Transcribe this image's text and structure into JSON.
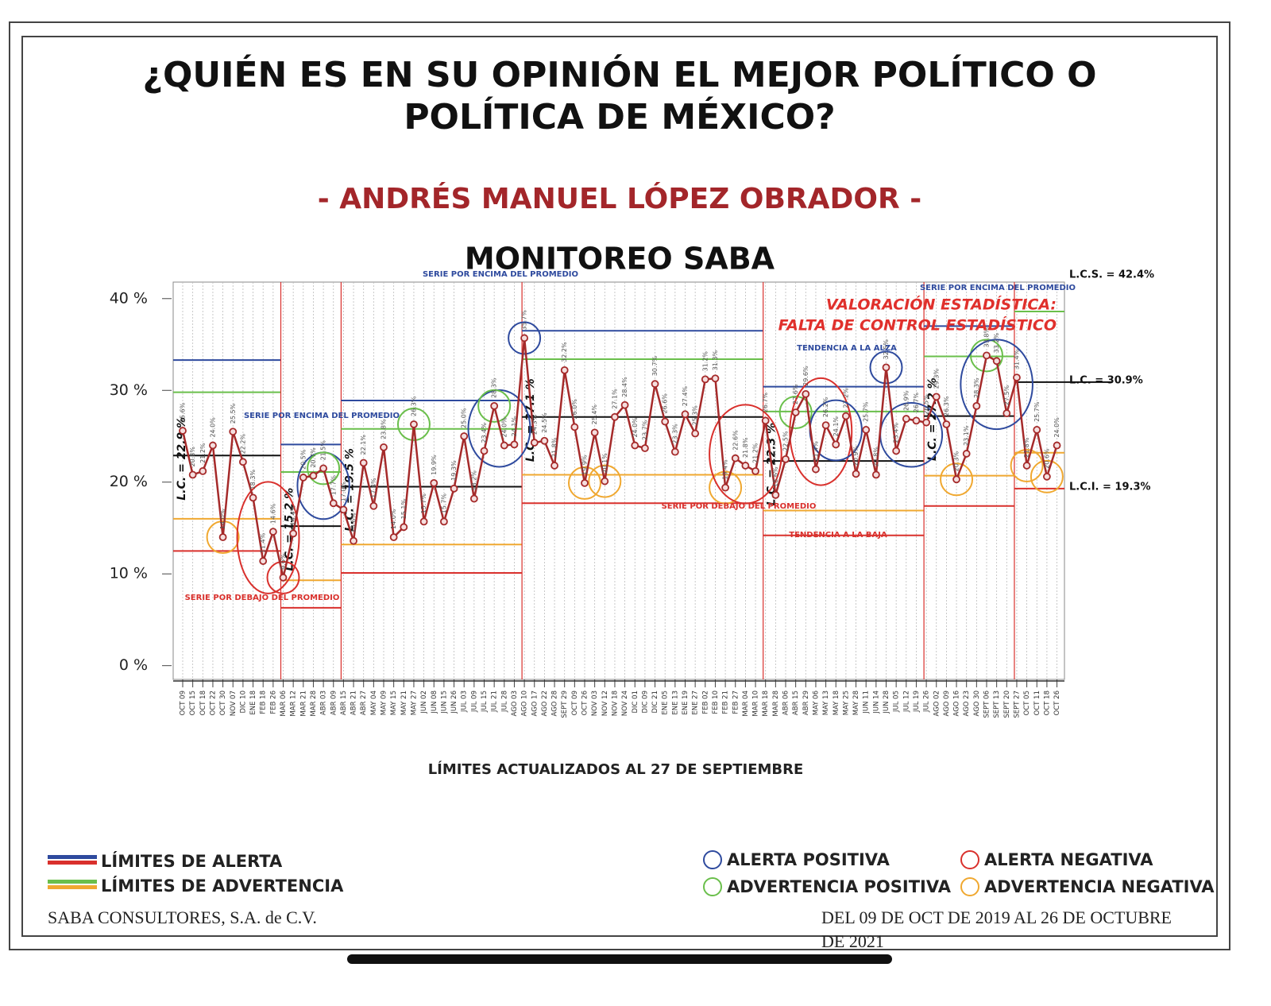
{
  "chart_data": {
    "type": "line",
    "title": "¿QUIÉN ES EN SU OPINIÓN EL MEJOR POLÍTICO O",
    "title2": "POLÍTICA DE MÉXICO?",
    "subtitle": "- ANDRÉS MANUEL LÓPEZ OBRADOR -",
    "heading": "MONITOREO SABA",
    "note": "LÍMITES ACTUALIZADOS AL  27  DE  SEPTIEMBRE",
    "categories": [
      "OCT 09",
      "OCT 15",
      "OCT 18",
      "OCT 22",
      "OCT 30",
      "NOV 07",
      "DIC 10",
      "ENE 18",
      "FEB 18",
      "FEB 26",
      "MAR 06",
      "MAR 12",
      "MAR 21",
      "MAR 28",
      "ABR 03",
      "ABR 09",
      "ABR 15",
      "ABR 21",
      "ABR 27",
      "MAY 04",
      "MAY 09",
      "MAY 15",
      "MAY 21",
      "MAY 27",
      "JUN 02",
      "JUN 08",
      "JUN 15",
      "JUN 26",
      "JUL 03",
      "JUL 09",
      "JUL 15",
      "JUL 21",
      "JUL 28",
      "AGO 03",
      "AGO 10",
      "AGO 17",
      "AGO 22",
      "AGO 28",
      "SEPT 29",
      "OCT 09",
      "OCT 26",
      "NOV 03",
      "NOV 12",
      "NOV 18",
      "NOV 24",
      "DIC 01",
      "DIC 09",
      "DIC 21",
      "ENE 05",
      "ENE 13",
      "ENE 19",
      "ENE 27",
      "FEB 02",
      "FEB 10",
      "FEB 21",
      "FEB 27",
      "MAR 04",
      "MAR 10",
      "MAR 18",
      "MAR 28",
      "ABR 06",
      "ABR 15",
      "ABR 29",
      "MAY 06",
      "MAY 13",
      "MAY 18",
      "MAY 25",
      "MAY 28",
      "JUN 11",
      "JUN 14",
      "JUN 28",
      "JUL 05",
      "JUL 12",
      "JUL 19",
      "JUL 26",
      "AGO 02",
      "AGO 09",
      "AGO 16",
      "AGO 23",
      "AGO 30",
      "SEPT 06",
      "SEPT 13",
      "SEPT 20",
      "SEPT 27",
      "OCT 05",
      "OCT 11",
      "OCT 18",
      "OCT 26"
    ],
    "values": [
      25.6,
      20.8,
      21.2,
      24.0,
      14.0,
      25.5,
      22.2,
      18.3,
      11.4,
      14.6,
      9.6,
      14.4,
      20.5,
      20.7,
      21.5,
      17.7,
      17.0,
      13.6,
      22.1,
      17.4,
      23.8,
      14.0,
      15.1,
      26.3,
      15.7,
      19.9,
      15.7,
      19.3,
      25.0,
      18.2,
      23.4,
      28.3,
      24.0,
      24.1,
      35.7,
      24.3,
      24.5,
      21.8,
      32.2,
      26.0,
      19.9,
      25.4,
      20.1,
      27.1,
      28.4,
      24.0,
      23.7,
      30.7,
      26.6,
      23.3,
      27.4,
      25.3,
      31.2,
      31.3,
      19.4,
      22.6,
      21.8,
      21.2,
      26.7,
      18.6,
      22.5,
      27.6,
      29.6,
      21.4,
      26.2,
      24.1,
      27.2,
      20.9,
      25.7,
      20.8,
      32.5,
      23.4,
      26.9,
      26.7,
      26.5,
      29.3,
      26.3,
      20.3,
      23.1,
      28.3,
      33.8,
      33.2,
      27.5,
      31.4,
      21.8,
      25.7,
      20.6,
      24.0
    ],
    "value_labels": [
      "25.6%",
      "20.8%",
      "21.2%",
      "24.0%",
      "14.0%",
      "25.5%",
      "22.2%",
      "18.3%",
      "11.4%",
      "14.6%",
      "9.6%",
      "14.4%",
      "20.5%",
      "20.7%",
      "21.5%",
      "17.7%",
      "17.0%",
      "13.6%",
      "22.1%",
      "17.4%",
      "23.8%",
      "14.0%",
      "15.1%",
      "26.3%",
      "15.7%",
      "19.9%",
      "15.7%",
      "19.3%",
      "25.0%",
      "18.2%",
      "23.4%",
      "28.3%",
      "24.0%",
      "24.1%",
      "35.7%",
      "24.3%",
      "24.5%",
      "21.8%",
      "32.2%",
      "26.0%",
      "19.9%",
      "25.4%",
      "20.1%",
      "27.1%",
      "28.4%",
      "24.0%",
      "23.7%",
      "30.7%",
      "26.6%",
      "23.3%",
      "27.4%",
      "25.3%",
      "31.2%",
      "31.3%",
      "19.4%",
      "22.6%",
      "21.8%",
      "21.2%",
      "26.7%",
      "18.6%",
      "22.5%",
      "27.6%",
      "29.6%",
      "21.4%",
      "26.2%",
      "24.1%",
      "27.2%",
      "20.9%",
      "25.7%",
      "20.8%",
      "32.5%",
      "23.4%",
      "26.9%",
      "26.7%",
      "26.5%",
      "29.3%",
      "26.3%",
      "20.3%",
      "23.1%",
      "28.3%",
      "33.8%",
      "33.2%",
      "27.5%",
      "31.4%",
      "21.8%",
      "25.7%",
      "20.6%",
      "24.0%"
    ],
    "color": "#a52a2a",
    "ylim": [
      -1.5,
      41.8
    ],
    "yticks": [
      {
        "value": 0,
        "label": "0 %"
      },
      {
        "value": 10,
        "label": "10 %"
      },
      {
        "value": 20,
        "label": "20 %"
      },
      {
        "value": 30,
        "label": "30 %"
      },
      {
        "value": 40,
        "label": "40 %"
      }
    ],
    "limit_colors": {
      "alert_upper": "#2e4a9e",
      "warn_upper": "#6abf4b",
      "center": "#111111",
      "warn_lower": "#f0a830",
      "alert_lower": "#d9302c"
    },
    "control_limits": [
      {
        "start": 0,
        "ucl": 33.3,
        "uwl": 29.8,
        "lc": 22.9,
        "lwl": 16.0,
        "lcl": 12.5,
        "lc_label": "L.C. = 22.9 %"
      },
      {
        "start": 10,
        "ucl": 24.1,
        "uwl": 21.1,
        "lc": 15.2,
        "lwl": 9.3,
        "lcl": 6.3,
        "lc_label": "L.C. = 15.2 %"
      },
      {
        "start": 16,
        "ucl": 28.9,
        "uwl": 25.8,
        "lc": 19.5,
        "lwl": 13.2,
        "lcl": 10.1,
        "lc_label": "L.C. = 19.5 %"
      },
      {
        "start": 34,
        "ucl": 36.5,
        "uwl": 33.4,
        "lc": 27.1,
        "lwl": 20.8,
        "lcl": 17.7,
        "lc_label": "L.C. = 27.1 %"
      },
      {
        "start": 58,
        "ucl": 30.4,
        "uwl": 27.7,
        "lc": 22.3,
        "lwl": 16.9,
        "lcl": 14.2,
        "lc_label": "L.C. = 22.3 %"
      },
      {
        "start": 74,
        "ucl": 37.0,
        "uwl": 33.7,
        "lc": 27.2,
        "lwl": 20.7,
        "lcl": 17.4,
        "lc_label": "L.C. = 27.2 %"
      },
      {
        "start": 83,
        "ucl": 42.4,
        "uwl": 38.6,
        "lc": 30.9,
        "lwl": 23.2,
        "lcl": 19.3
      }
    ],
    "current_labels": {
      "ucl": "L.C.S. = 42.4%",
      "lc": "L.C. = 30.9%",
      "lcl": "L.C.I. = 19.3%"
    },
    "highlights": [
      {
        "from": 4,
        "to": 4,
        "color": "#f0a830"
      },
      {
        "from": 7,
        "to": 10,
        "color": "#d9302c"
      },
      {
        "from": 10,
        "to": 10,
        "color": "#d9302c"
      },
      {
        "from": 13,
        "to": 15,
        "color": "#2e4a9e"
      },
      {
        "from": 14,
        "to": 14,
        "color": "#6abf4b"
      },
      {
        "from": 23,
        "to": 23,
        "color": "#6abf4b"
      },
      {
        "from": 30,
        "to": 33,
        "color": "#2e4a9e"
      },
      {
        "from": 31,
        "to": 31,
        "color": "#6abf4b"
      },
      {
        "from": 34,
        "to": 34,
        "color": "#2e4a9e"
      },
      {
        "from": 40,
        "to": 40,
        "color": "#f0a830"
      },
      {
        "from": 42,
        "to": 42,
        "color": "#f0a830"
      },
      {
        "from": 54,
        "to": 54,
        "color": "#f0a830"
      },
      {
        "from": 54,
        "to": 58,
        "color": "#d9302c"
      },
      {
        "from": 61,
        "to": 61,
        "color": "#6abf4b"
      },
      {
        "from": 62,
        "to": 65,
        "color": "#d9302c"
      },
      {
        "from": 64,
        "to": 66,
        "color": "#2e4a9e"
      },
      {
        "from": 70,
        "to": 70,
        "color": "#2e4a9e"
      },
      {
        "from": 71,
        "to": 74,
        "color": "#2e4a9e"
      },
      {
        "from": 77,
        "to": 77,
        "color": "#f0a830"
      },
      {
        "from": 80,
        "to": 80,
        "color": "#6abf4b"
      },
      {
        "from": 79,
        "to": 83,
        "color": "#2e4a9e"
      },
      {
        "from": 84,
        "to": 84,
        "color": "#f0a830"
      },
      {
        "from": 86,
        "to": 86,
        "color": "#f0a830"
      }
    ],
    "annotations": {
      "below1": "SERIE POR DEBAJO DEL PROMEDIO",
      "above1": "SERIE POR ENCIMA DEL PROMEDIO",
      "above2": "SERIE POR ENCIMA DEL PROMEDIO",
      "below2": "SERIE POR DEBAJO DEL PROMEDIO",
      "up": "TENDENCIA A LA ALZA",
      "down": "TENDENCIA A LA BAJA",
      "above3": "SERIE POR ENCIMA DEL PROMEDIO",
      "valor1": "VALORACIÓN ESTADÍSTICA:",
      "valor2": "FALTA DE CONTROL ESTADÍSTICO"
    },
    "legend": {
      "alert_limits": "LÍMITES DE ALERTA",
      "warn_limits": "LÍMITES DE ADVERTENCIA",
      "pos_alert": "ALERTA POSITIVA",
      "pos_warn": "ADVERTENCIA POSITIVA",
      "neg_alert": "ALERTA NEGATIVA",
      "neg_warn": "ADVERTENCIA NEGATIVA"
    },
    "footer_left": "SABA CONSULTORES, S.A. de C.V.",
    "footer_right": "DEL 09 DE OCT DE 2019 AL 26 DE OCTUBRE",
    "footer_right2": "DE 2021"
  }
}
